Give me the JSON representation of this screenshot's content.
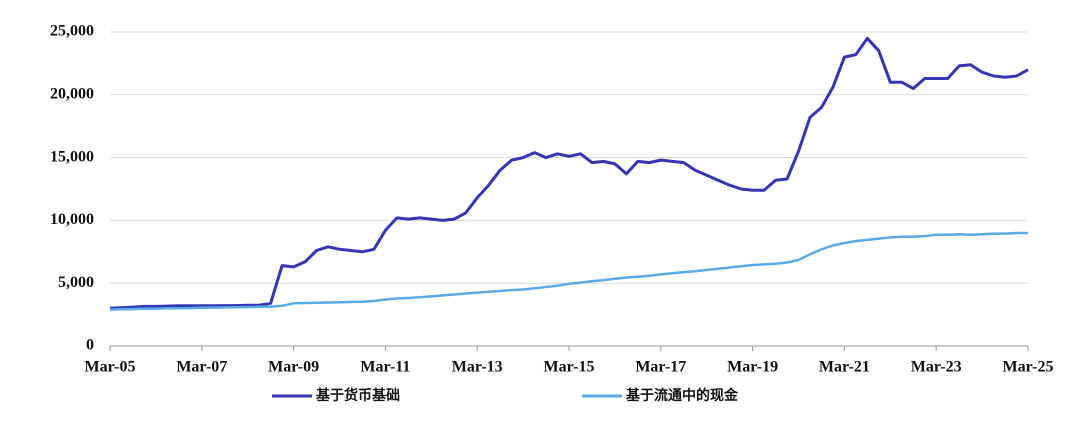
{
  "chart_data": {
    "type": "line",
    "x": [
      "2005-03",
      "2005-06",
      "2005-09",
      "2005-12",
      "2006-03",
      "2006-06",
      "2006-09",
      "2006-12",
      "2007-03",
      "2007-06",
      "2007-09",
      "2007-12",
      "2008-03",
      "2008-06",
      "2008-09",
      "2008-12",
      "2009-03",
      "2009-06",
      "2009-09",
      "2009-12",
      "2010-03",
      "2010-06",
      "2010-09",
      "2010-12",
      "2011-03",
      "2011-06",
      "2011-09",
      "2011-12",
      "2012-03",
      "2012-06",
      "2012-09",
      "2012-12",
      "2013-03",
      "2013-06",
      "2013-09",
      "2013-12",
      "2014-03",
      "2014-06",
      "2014-09",
      "2014-12",
      "2015-03",
      "2015-06",
      "2015-09",
      "2015-12",
      "2016-03",
      "2016-06",
      "2016-09",
      "2016-12",
      "2017-03",
      "2017-06",
      "2017-09",
      "2017-12",
      "2018-03",
      "2018-06",
      "2018-09",
      "2018-12",
      "2019-03",
      "2019-06",
      "2019-09",
      "2019-12",
      "2020-03",
      "2020-06",
      "2020-09",
      "2020-12",
      "2021-03",
      "2021-06",
      "2021-09",
      "2021-12",
      "2022-03",
      "2022-06",
      "2022-09",
      "2022-12",
      "2023-03",
      "2023-06",
      "2023-09",
      "2023-12",
      "2024-03",
      "2024-06",
      "2024-09",
      "2024-12",
      "2025-03"
    ],
    "series": [
      {
        "name": "基于货币基础",
        "color": "#3535b5",
        "values": [
          3000,
          3050,
          3100,
          3150,
          3150,
          3180,
          3200,
          3200,
          3200,
          3200,
          3220,
          3220,
          3250,
          3250,
          3400,
          6400,
          6300,
          6700,
          7600,
          7900,
          7700,
          7600,
          7500,
          7700,
          9200,
          10200,
          10100,
          10200,
          10100,
          10000,
          10100,
          10600,
          11800,
          12800,
          14000,
          14800,
          15000,
          15400,
          15000,
          15300,
          15100,
          15300,
          14600,
          14700,
          14500,
          13700,
          14700,
          14600,
          14800,
          14700,
          14600,
          14000,
          13600,
          13200,
          12800,
          12500,
          12400,
          12400,
          13200,
          13300,
          15500,
          18200,
          19000,
          20600,
          23000,
          23200,
          24500,
          23500,
          21000,
          21000,
          20500,
          21300,
          21300,
          21300,
          22300,
          22400,
          21800,
          21500,
          21400,
          21500,
          22000
        ]
      },
      {
        "name": "基于流通中的现金",
        "color": "#5aaae6",
        "values": [
          2900,
          2920,
          2940,
          2960,
          2980,
          3000,
          3010,
          3020,
          3040,
          3060,
          3070,
          3090,
          3100,
          3120,
          3140,
          3200,
          3400,
          3420,
          3440,
          3460,
          3480,
          3500,
          3520,
          3580,
          3700,
          3780,
          3820,
          3880,
          3950,
          4030,
          4100,
          4180,
          4250,
          4320,
          4380,
          4450,
          4500,
          4600,
          4700,
          4800,
          4950,
          5050,
          5150,
          5250,
          5350,
          5450,
          5520,
          5600,
          5700,
          5800,
          5880,
          5950,
          6050,
          6150,
          6250,
          6350,
          6450,
          6500,
          6550,
          6650,
          6850,
          7300,
          7700,
          8000,
          8200,
          8350,
          8450,
          8550,
          8650,
          8700,
          8700,
          8750,
          8850,
          8850,
          8900,
          8850,
          8900,
          8950,
          8950,
          9000,
          9000
        ]
      }
    ],
    "xticks": [
      {
        "value": "2005-03",
        "label": "Mar-05"
      },
      {
        "value": "2007-03",
        "label": "Mar-07"
      },
      {
        "value": "2009-03",
        "label": "Mar-09"
      },
      {
        "value": "2011-03",
        "label": "Mar-11"
      },
      {
        "value": "2013-03",
        "label": "Mar-13"
      },
      {
        "value": "2015-03",
        "label": "Mar-15"
      },
      {
        "value": "2017-03",
        "label": "Mar-17"
      },
      {
        "value": "2019-03",
        "label": "Mar-19"
      },
      {
        "value": "2021-03",
        "label": "Mar-21"
      },
      {
        "value": "2023-03",
        "label": "Mar-23"
      },
      {
        "value": "2025-03",
        "label": "Mar-25"
      }
    ],
    "ylim": [
      0,
      25000
    ],
    "yticks": [
      0,
      {
        "value": 5000,
        "label": "5,000"
      },
      {
        "value": 10000,
        "label": "10,000"
      },
      {
        "value": 15000,
        "label": "15,000"
      },
      {
        "value": 20000,
        "label": "20,000"
      },
      {
        "value": 25000,
        "label": "25,000"
      }
    ],
    "grid": true,
    "legend": "bottom"
  }
}
